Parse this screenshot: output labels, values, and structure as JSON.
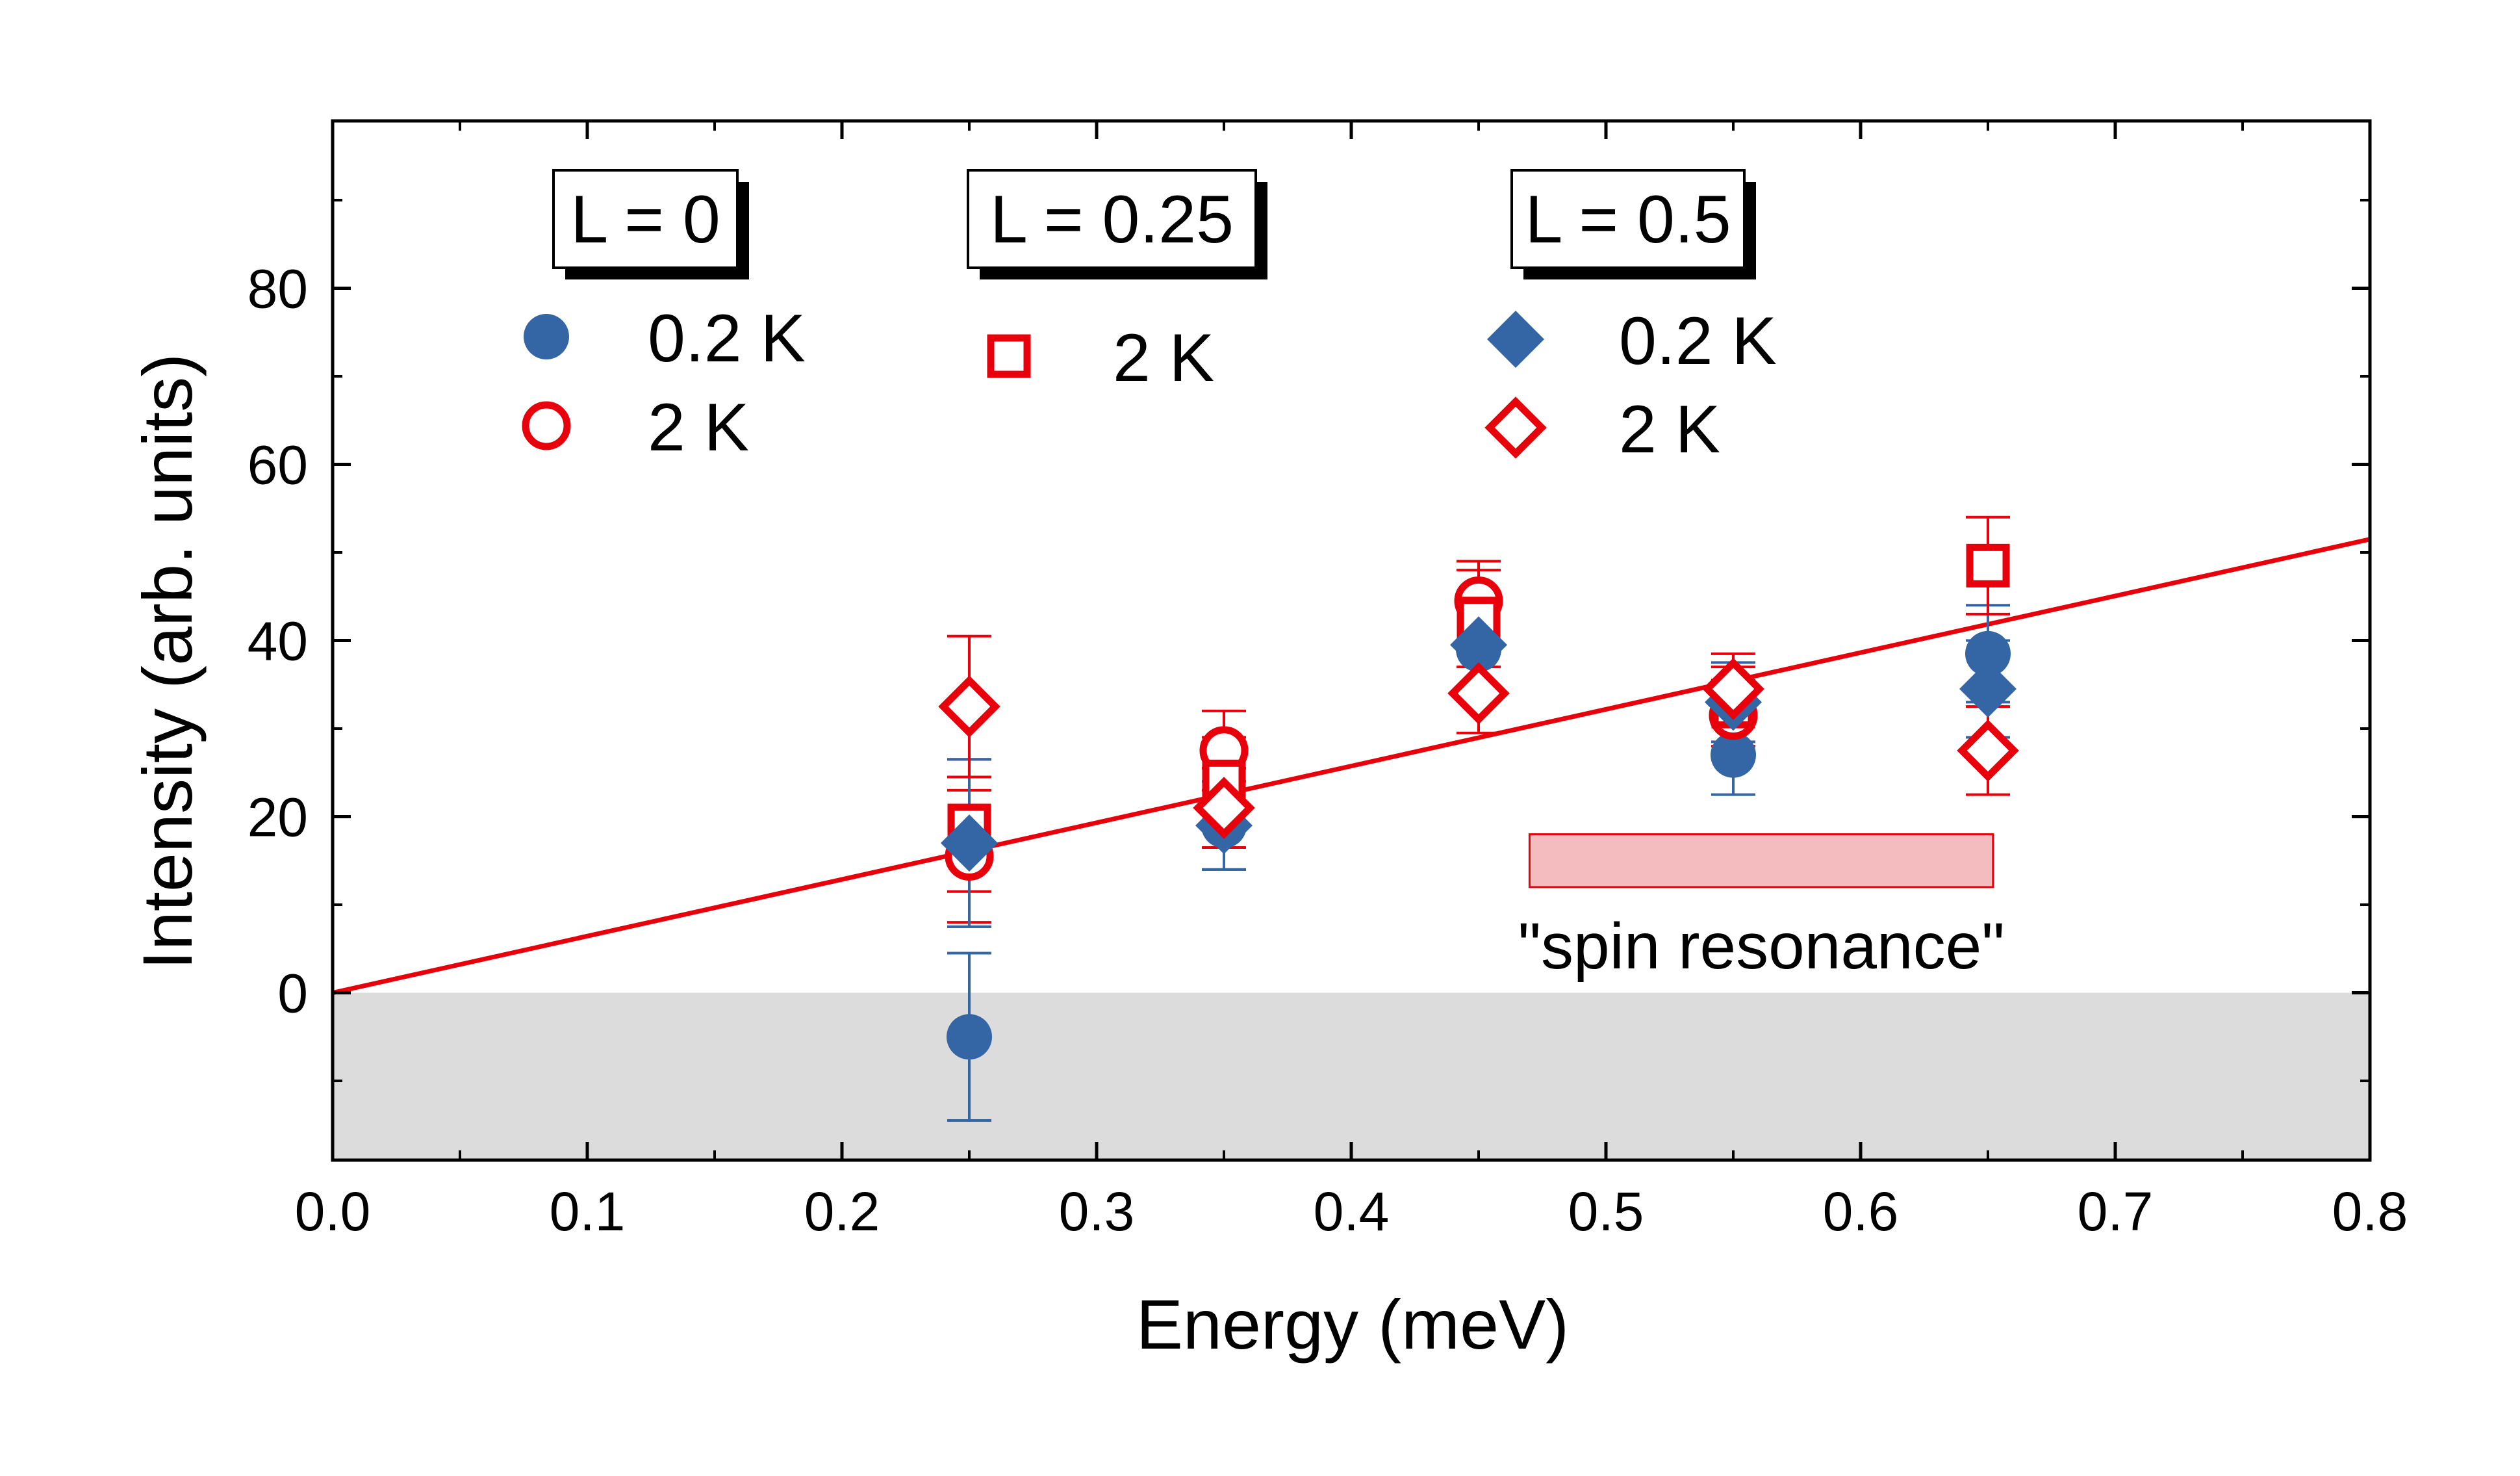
{
  "chart_data": {
    "type": "scatter",
    "title": "",
    "xlabel": "Energy (meV)",
    "ylabel": "Intensity (arb. units)",
    "xlim": [
      0.0,
      0.8
    ],
    "ylim": [
      -19,
      99
    ],
    "x_ticks": [
      0.0,
      0.1,
      0.2,
      0.3,
      0.4,
      0.5,
      0.6,
      0.7,
      0.8
    ],
    "x_tick_labels": [
      "0.0",
      "0.1",
      "0.2",
      "0.3",
      "0.4",
      "0.5",
      "0.6",
      "0.7",
      "0.8"
    ],
    "y_ticks": [
      0,
      20,
      40,
      60,
      80
    ],
    "y_tick_labels": [
      "0",
      "20",
      "40",
      "60",
      "80"
    ],
    "grid": false,
    "colors": {
      "blue": "#3465a4",
      "red": "#e8000b",
      "shade": "#dcdcdc",
      "band_fill": "#f4bcbf"
    },
    "negative_region": {
      "y_from": -19,
      "y_to": 0
    },
    "series": [
      {
        "name": "L = 0, 0.2 K",
        "group": "L = 0",
        "temp": "0.2 K",
        "marker": "circle",
        "filled": true,
        "color": "#3465a4",
        "x": [
          0.25,
          0.25,
          0.35,
          0.45,
          0.55,
          0.65
        ],
        "y": [
          17,
          -5,
          19,
          39,
          27,
          38.5
        ],
        "err": [
          9.5,
          9.5,
          5,
          5,
          4.5,
          5.5
        ]
      },
      {
        "name": "L = 0, 2 K",
        "group": "L = 0",
        "temp": "2 K",
        "marker": "circle",
        "filled": false,
        "color": "#e8000b",
        "x": [
          0.25,
          0.35,
          0.45,
          0.55
        ],
        "y": [
          15.5,
          27.5,
          44.5,
          31.5
        ],
        "err": [
          7.5,
          4.5,
          4.5,
          4
        ]
      },
      {
        "name": "L = 0.25, 2 K",
        "group": "L = 0.25",
        "temp": "2 K",
        "marker": "square",
        "filled": false,
        "color": "#e8000b",
        "x": [
          0.25,
          0.35,
          0.45,
          0.55,
          0.65
        ],
        "y": [
          19,
          24,
          42.5,
          32.5,
          48.5
        ],
        "err": [
          7.5,
          5,
          5.5,
          4.5,
          5.5
        ]
      },
      {
        "name": "L = 0.5, 0.2 K",
        "group": "L = 0.5",
        "temp": "0.2 K",
        "marker": "diamond",
        "filled": true,
        "color": "#3465a4",
        "x": [
          0.25,
          0.35,
          0.45,
          0.55,
          0.65
        ],
        "y": [
          17,
          19,
          39.5,
          33,
          34.5
        ],
        "err": [
          9.5,
          5,
          5,
          4.5,
          5.5
        ]
      },
      {
        "name": "L = 0.5, 2 K",
        "group": "L = 0.5",
        "temp": "2 K",
        "marker": "diamond",
        "filled": false,
        "color": "#e8000b",
        "x": [
          0.25,
          0.35,
          0.45,
          0.55,
          0.65
        ],
        "y": [
          32.5,
          21,
          34,
          34.5,
          27.5
        ],
        "err": [
          8,
          4.5,
          4.5,
          4,
          5
        ]
      }
    ],
    "fit_line": {
      "name": "linear fit",
      "color": "#e8000b",
      "x": [
        0.0,
        0.8
      ],
      "y": [
        0.0,
        51.5
      ]
    },
    "band": {
      "label": "\"spin resonance\"",
      "x_from": 0.47,
      "x_to": 0.652,
      "y_from": 12,
      "y_to": 18
    },
    "legend": {
      "groups": [
        {
          "title": "L = 0",
          "entries": [
            {
              "marker": "circle",
              "filled": true,
              "color": "#3465a4",
              "label": "0.2 K"
            },
            {
              "marker": "circle",
              "filled": false,
              "color": "#e8000b",
              "label": "2 K"
            }
          ]
        },
        {
          "title": "L = 0.25",
          "entries": [
            {
              "marker": "square",
              "filled": false,
              "color": "#e8000b",
              "label": "2 K"
            }
          ]
        },
        {
          "title": "L = 0.5",
          "entries": [
            {
              "marker": "diamond",
              "filled": true,
              "color": "#3465a4",
              "label": "0.2 K"
            },
            {
              "marker": "diamond",
              "filled": false,
              "color": "#e8000b",
              "label": "2 K"
            }
          ]
        }
      ]
    }
  }
}
